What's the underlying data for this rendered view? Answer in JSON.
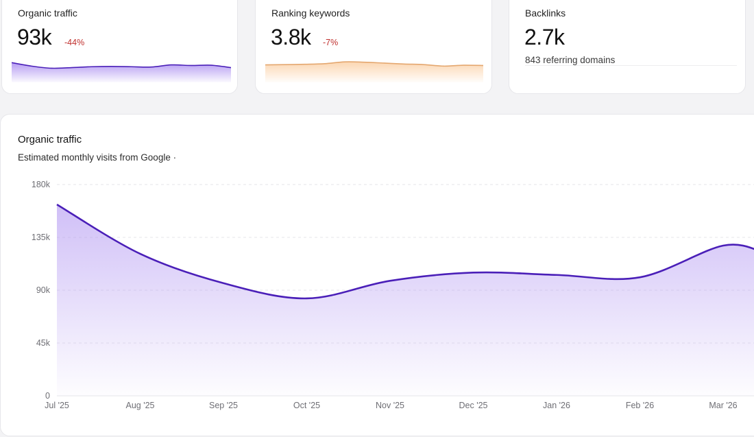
{
  "colors": {
    "traffic": "#4a1fb8",
    "traffic_fill": "#a98bf0",
    "keywords": "#e4a76f",
    "keywords_fill": "#fbcfa4",
    "negative": "#c0302e"
  },
  "stats": {
    "traffic": {
      "label": "Organic traffic",
      "value": "93k",
      "delta": "-44%",
      "spark": [
        0.85,
        0.62,
        0.48,
        0.52,
        0.58,
        0.6,
        0.58,
        0.56,
        0.7,
        0.66,
        0.68,
        0.52
      ]
    },
    "keywords": {
      "label": "Ranking keywords",
      "value": "3.8k",
      "delta": "-7%",
      "spark": [
        0.7,
        0.72,
        0.74,
        0.78,
        0.9,
        0.88,
        0.82,
        0.76,
        0.72,
        0.62,
        0.68,
        0.66
      ]
    },
    "backlinks": {
      "label": "Backlinks",
      "value": "2.7k",
      "sub": "843 referring domains"
    }
  },
  "main": {
    "title": "Organic traffic",
    "subtitle": "Estimated monthly visits from Google ·"
  },
  "chart_data": {
    "type": "area",
    "title": "Organic traffic",
    "subtitle": "Estimated monthly visits from Google",
    "categories": [
      "Jul '25",
      "Aug '25",
      "Sep '25",
      "Oct '25",
      "Nov '25",
      "Dec '25",
      "Jan '26",
      "Feb '26",
      "Mar '26"
    ],
    "series": [
      {
        "values": [
          163000,
          121000,
          96000,
          83000,
          98000,
          105000,
          103000,
          101000,
          128000
        ]
      }
    ],
    "ylim": [
      0,
      180000
    ],
    "yticks": [
      "0",
      "45k",
      "90k",
      "135k",
      "180k"
    ],
    "grid": true,
    "xlabel": "",
    "ylabel": ""
  }
}
